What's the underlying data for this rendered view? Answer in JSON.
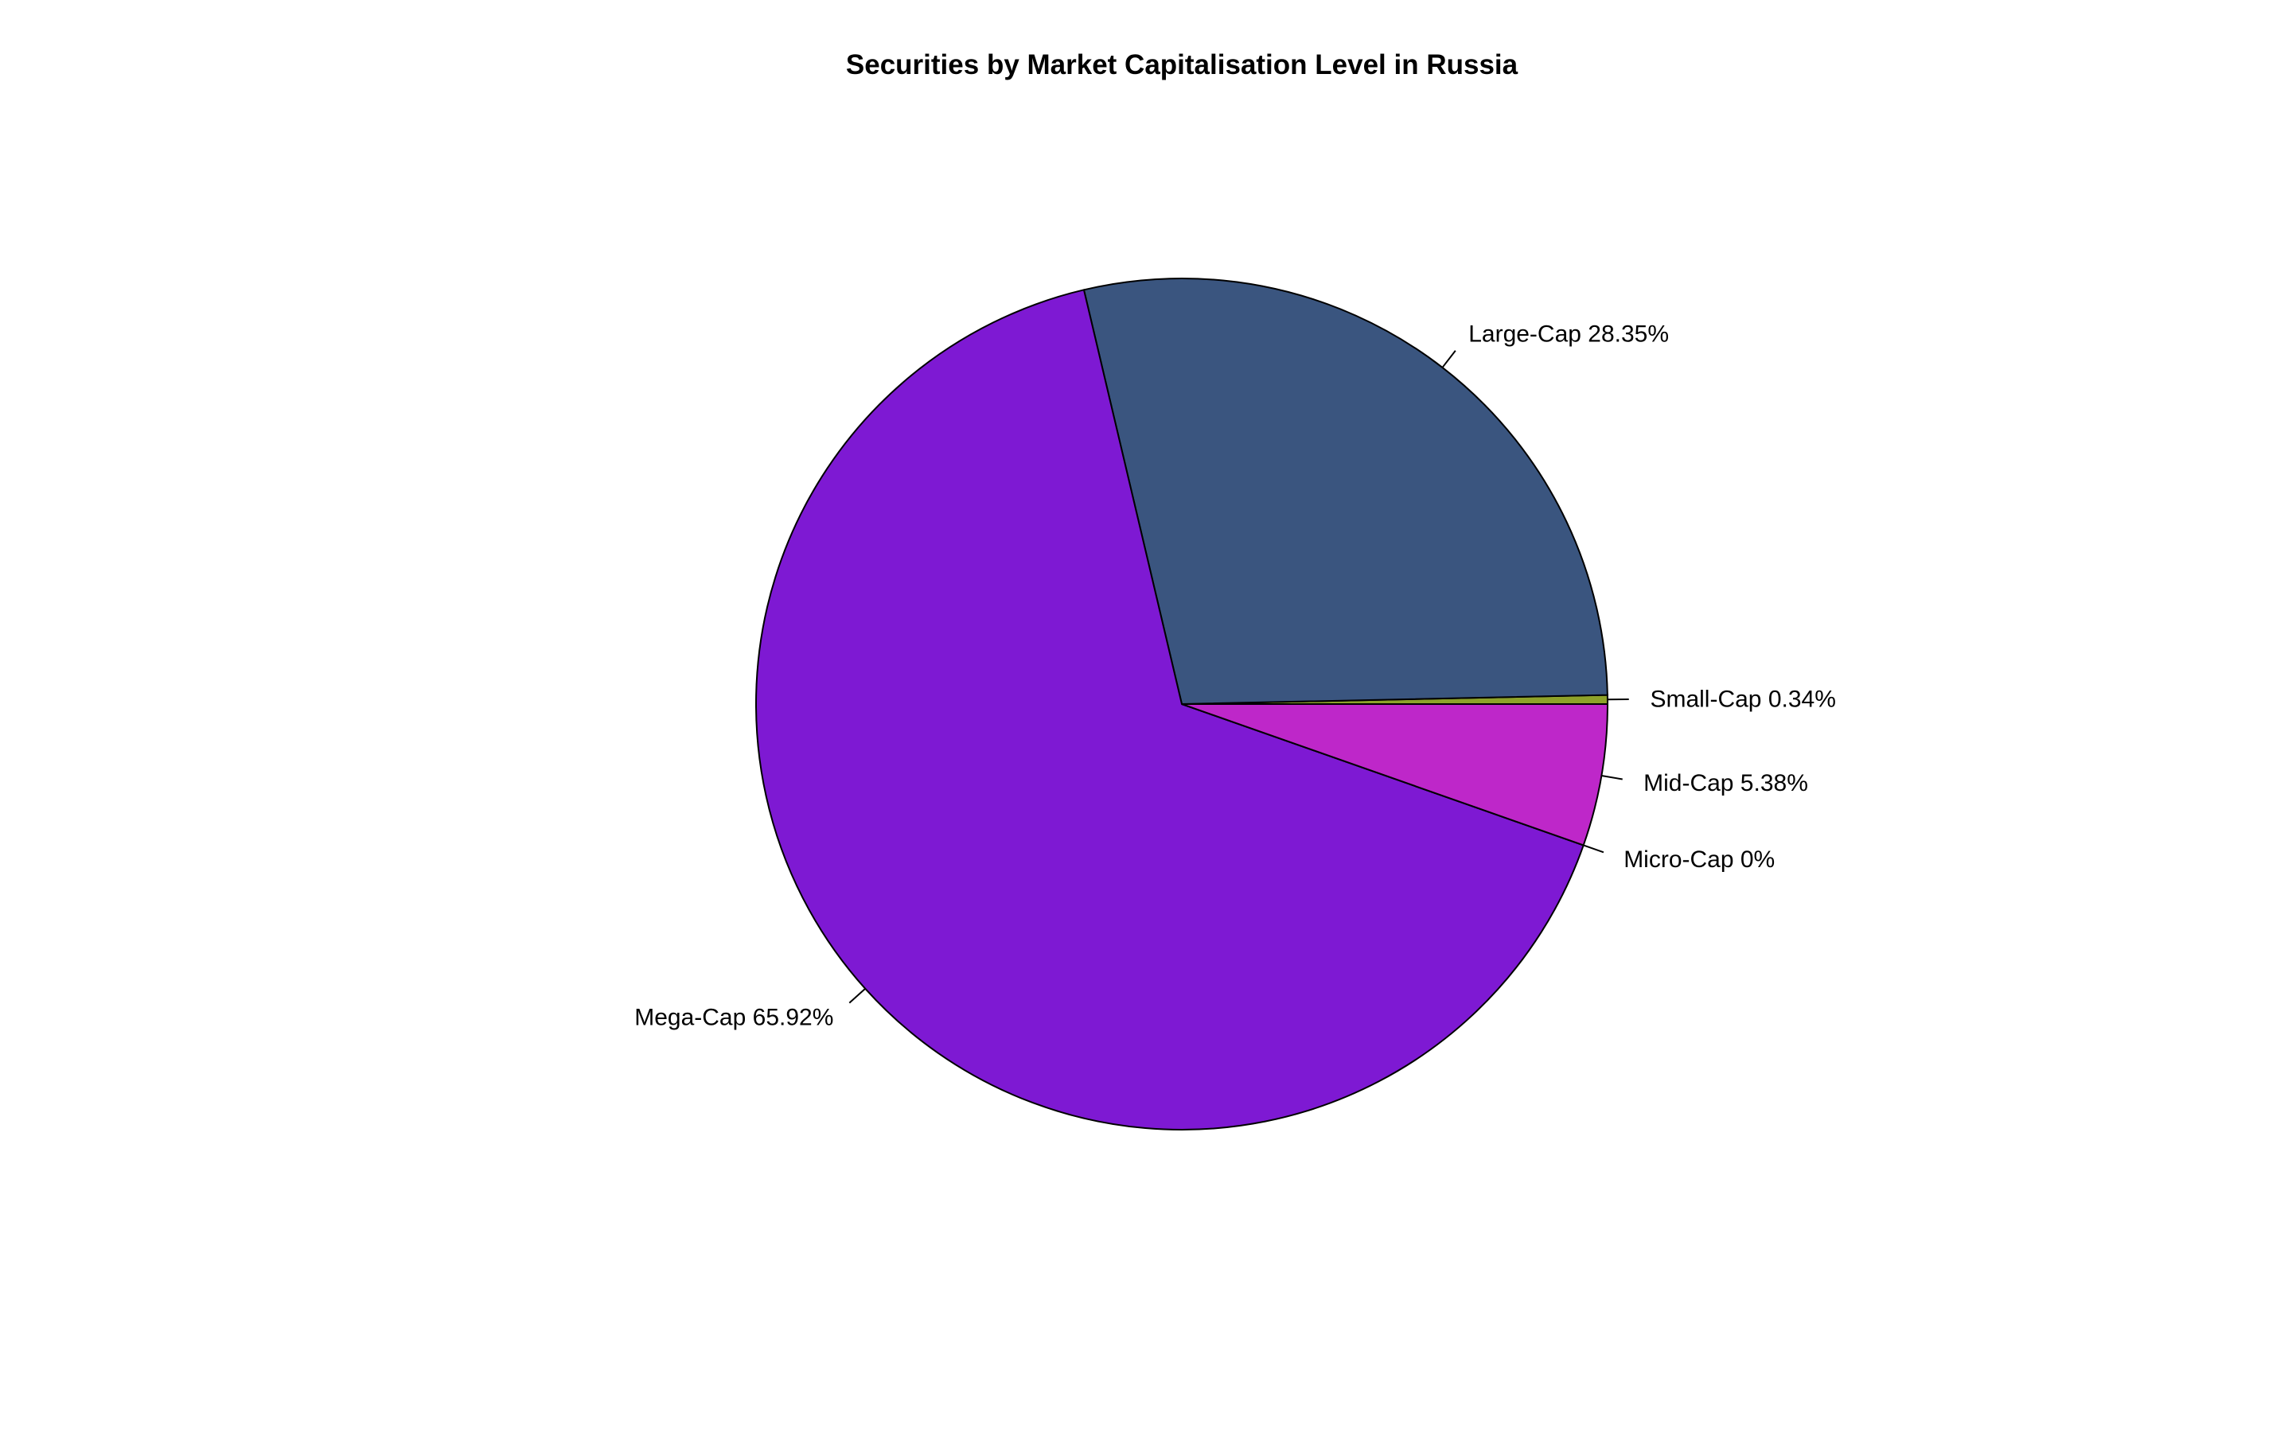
{
  "chart_data": {
    "type": "pie",
    "title": "Securities by Market Capitalisation Level in Russia",
    "direction": "counterclockwise",
    "start_angle_deg": 0,
    "slices": [
      {
        "label": "Small-Cap 0.34%",
        "name": "Small-Cap",
        "value": 0.34,
        "color": "#8ea22a"
      },
      {
        "label": "Large-Cap 28.35%",
        "name": "Large-Cap",
        "value": 28.35,
        "color": "#3a557f"
      },
      {
        "label": "Mega-Cap 65.92%",
        "name": "Mega-Cap",
        "value": 65.92,
        "color": "#7e19d3"
      },
      {
        "label": "Micro-Cap 0%",
        "name": "Micro-Cap",
        "value": 0,
        "color": "#8e1fd1"
      },
      {
        "label": "Mid-Cap 5.38%",
        "name": "Mid-Cap",
        "value": 5.38,
        "color": "#be27c9"
      }
    ],
    "legend": "none"
  }
}
